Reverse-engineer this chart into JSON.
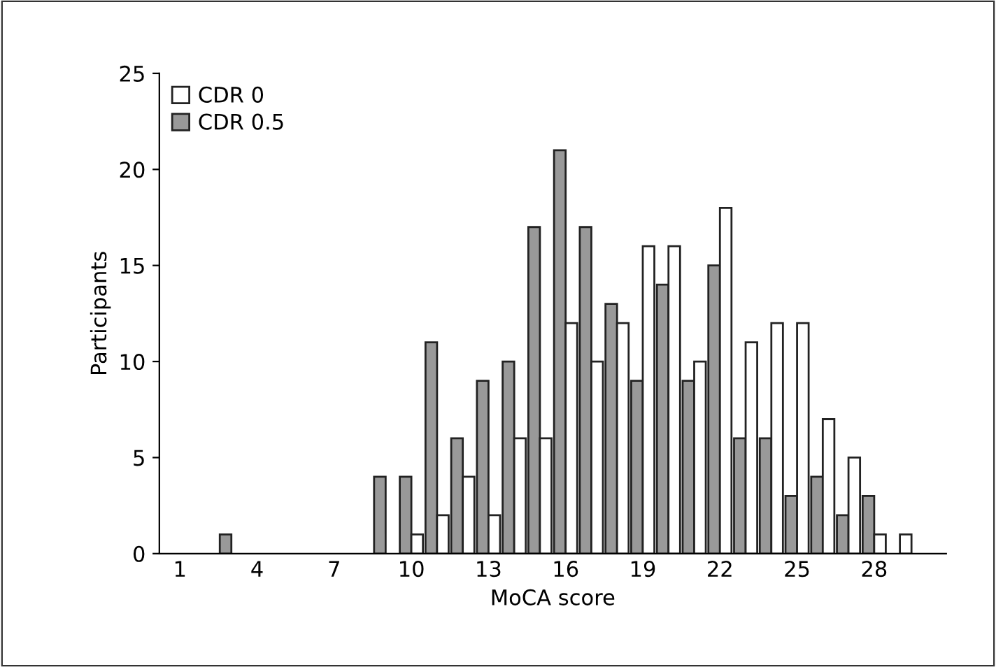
{
  "chart_data": {
    "type": "bar",
    "xlabel": "MoCA score",
    "ylabel": "Participants",
    "categories": [
      "1",
      null,
      null,
      "4",
      null,
      null,
      "7",
      null,
      null,
      "10",
      null,
      null,
      "13",
      null,
      null,
      "16",
      null,
      null,
      "19",
      null,
      null,
      "22",
      null,
      null,
      "25",
      null,
      null,
      "28",
      null,
      null
    ],
    "series": [
      {
        "name": "CDR 0.5",
        "color": "#999999",
        "values": [
          0,
          0,
          1,
          0,
          0,
          0,
          0,
          0,
          4,
          4,
          11,
          6,
          9,
          10,
          17,
          21,
          17,
          13,
          9,
          14,
          9,
          15,
          6,
          6,
          3,
          4,
          2,
          3,
          0,
          0
        ]
      },
      {
        "name": "CDR 0",
        "color": "#ffffff",
        "values": [
          0,
          0,
          0,
          0,
          0,
          0,
          0,
          0,
          0,
          1,
          2,
          4,
          2,
          6,
          6,
          12,
          10,
          12,
          16,
          16,
          10,
          18,
          11,
          12,
          12,
          7,
          5,
          1,
          1,
          0
        ]
      }
    ],
    "ylim": [
      0,
      25
    ],
    "yticks": [
      0,
      5,
      10,
      15,
      20,
      25
    ],
    "grid": false,
    "legend": "top left"
  }
}
